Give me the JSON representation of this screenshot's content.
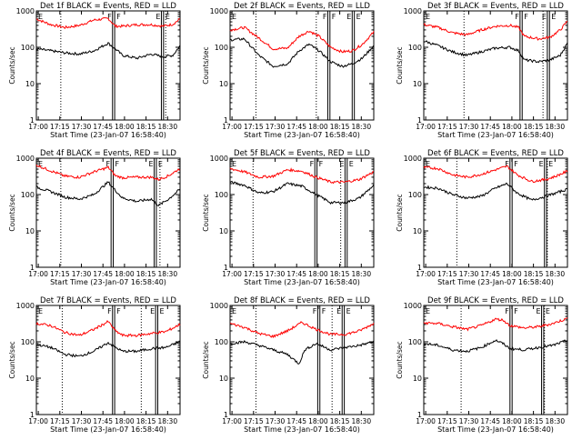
{
  "shared": {
    "xlabel": "Start Time (23-Jan-07 16:58:40)",
    "ylabel": "Counts/sec",
    "x_ticks": [
      "17:00",
      "17:15",
      "17:30",
      "17:45",
      "18:00",
      "18:15",
      "18:30"
    ],
    "y_ticks": [
      "1",
      "10",
      "100",
      "1000"
    ],
    "event_labels": [
      "E",
      "F",
      "F",
      "E"
    ],
    "colors": {
      "events": "#000000",
      "lld": "#ff0000",
      "markers": "#000000"
    }
  },
  "chart_data": [
    {
      "type": "line",
      "title": "Det 1f BLACK = Events, RED = LLD",
      "xlabel": "Start Time (23-Jan-07 16:58:40)",
      "ylabel": "Counts/sec",
      "x_unit": "minutes after 16:58:40",
      "xlim": [
        0,
        100
      ],
      "ylim": [
        1,
        1000
      ],
      "yscale": "log",
      "dotted_lines_x": [
        17,
        90
      ],
      "marker_pairs_x": [
        [
          53,
          54.5
        ],
        [
          87,
          88.5
        ]
      ],
      "series": [
        {
          "name": "LLD",
          "color": "#ff0000",
          "x": [
            0,
            10,
            20,
            30,
            40,
            50,
            55,
            60,
            70,
            80,
            88,
            95,
            100
          ],
          "y": [
            600,
            420,
            350,
            400,
            560,
            620,
            380,
            380,
            420,
            420,
            380,
            430,
            600
          ]
        },
        {
          "name": "Events",
          "color": "#000000",
          "x": [
            0,
            10,
            20,
            30,
            40,
            50,
            55,
            60,
            70,
            80,
            88,
            95,
            100
          ],
          "y": [
            90,
            80,
            70,
            65,
            80,
            130,
            90,
            60,
            50,
            65,
            55,
            60,
            110
          ]
        }
      ]
    },
    {
      "type": "line",
      "title": "Det 2f BLACK = Events, RED = LLD",
      "xlabel": "Start Time (23-Jan-07 16:58:40)",
      "ylabel": "Counts/sec",
      "x_unit": "minutes after 16:58:40",
      "xlim": [
        0,
        100
      ],
      "ylim": [
        1,
        1000
      ],
      "yscale": "log",
      "dotted_lines_x": [
        18,
        60
      ],
      "marker_pairs_x": [
        [
          68,
          69.5
        ],
        [
          85,
          86.5
        ]
      ],
      "series": [
        {
          "name": "LLD",
          "color": "#ff0000",
          "x": [
            0,
            10,
            20,
            30,
            40,
            48,
            55,
            62,
            70,
            78,
            85,
            92,
            100
          ],
          "y": [
            300,
            350,
            180,
            90,
            95,
            200,
            280,
            200,
            100,
            75,
            80,
            120,
            260
          ]
        },
        {
          "name": "Events",
          "color": "#000000",
          "x": [
            0,
            10,
            20,
            30,
            40,
            48,
            55,
            62,
            70,
            78,
            85,
            92,
            100
          ],
          "y": [
            160,
            170,
            60,
            30,
            35,
            80,
            120,
            80,
            40,
            30,
            35,
            50,
            110
          ]
        }
      ]
    },
    {
      "type": "line",
      "title": "Det 3f BLACK = Events, RED = LLD",
      "xlabel": "Start Time (23-Jan-07 16:58:40)",
      "ylabel": "Counts/sec",
      "x_unit": "minutes after 16:58:40",
      "xlim": [
        0,
        100
      ],
      "ylim": [
        1,
        1000
      ],
      "yscale": "log",
      "dotted_lines_x": [
        28,
        83
      ],
      "marker_pairs_x": [
        [
          67,
          68.5
        ],
        [
          86,
          87.5
        ]
      ],
      "series": [
        {
          "name": "LLD",
          "color": "#ff0000",
          "x": [
            0,
            10,
            20,
            30,
            40,
            50,
            60,
            66,
            70,
            80,
            88,
            95,
            100
          ],
          "y": [
            420,
            350,
            250,
            220,
            300,
            380,
            400,
            350,
            200,
            170,
            190,
            300,
            520
          ]
        },
        {
          "name": "Events",
          "color": "#000000",
          "x": [
            0,
            10,
            20,
            30,
            40,
            50,
            60,
            66,
            70,
            80,
            88,
            95,
            100
          ],
          "y": [
            150,
            110,
            75,
            60,
            75,
            95,
            100,
            80,
            45,
            40,
            45,
            60,
            130
          ]
        }
      ]
    },
    {
      "type": "line",
      "title": "Det 4f BLACK = Events, RED = LLD",
      "xlabel": "Start Time (23-Jan-07 16:58:40)",
      "ylabel": "Counts/sec",
      "x_unit": "minutes after 16:58:40",
      "xlim": [
        0,
        100
      ],
      "ylim": [
        1,
        1000
      ],
      "yscale": "log",
      "dotted_lines_x": [
        17,
        86
      ],
      "marker_pairs_x": [
        [
          52,
          53.5
        ],
        [
          82,
          83.5
        ]
      ],
      "series": [
        {
          "name": "LLD",
          "color": "#ff0000",
          "x": [
            0,
            10,
            20,
            30,
            40,
            50,
            55,
            60,
            70,
            80,
            85,
            92,
            100
          ],
          "y": [
            650,
            450,
            320,
            300,
            420,
            560,
            330,
            290,
            300,
            300,
            260,
            330,
            520
          ]
        },
        {
          "name": "Events",
          "color": "#000000",
          "x": [
            0,
            10,
            20,
            30,
            40,
            50,
            55,
            60,
            70,
            80,
            85,
            92,
            100
          ],
          "y": [
            160,
            120,
            85,
            75,
            100,
            220,
            130,
            80,
            65,
            75,
            50,
            75,
            140
          ]
        }
      ]
    },
    {
      "type": "line",
      "title": "Det 5f BLACK = Events, RED = LLD",
      "xlabel": "Start Time (23-Jan-07 16:58:40)",
      "ylabel": "Counts/sec",
      "x_unit": "minutes after 16:58:40",
      "xlim": [
        0,
        100
      ],
      "ylim": [
        1,
        1000
      ],
      "yscale": "log",
      "dotted_lines_x": [
        16,
        77
      ],
      "marker_pairs_x": [
        [
          59,
          60.5
        ],
        [
          80,
          81.5
        ]
      ],
      "series": [
        {
          "name": "LLD",
          "color": "#ff0000",
          "x": [
            0,
            10,
            20,
            30,
            40,
            50,
            60,
            70,
            80,
            90,
            100
          ],
          "y": [
            520,
            420,
            300,
            320,
            480,
            440,
            300,
            220,
            220,
            260,
            420
          ]
        },
        {
          "name": "Events",
          "color": "#000000",
          "x": [
            0,
            10,
            20,
            30,
            40,
            50,
            60,
            70,
            80,
            90,
            100
          ],
          "y": [
            220,
            180,
            110,
            120,
            200,
            170,
            100,
            60,
            60,
            80,
            180
          ]
        }
      ]
    },
    {
      "type": "line",
      "title": "Det 6f BLACK = Events, RED = LLD",
      "xlabel": "Start Time (23-Jan-07 16:58:40)",
      "ylabel": "Counts/sec",
      "x_unit": "minutes after 16:58:40",
      "xlim": [
        0,
        100
      ],
      "ylim": [
        1,
        1000
      ],
      "yscale": "log",
      "dotted_lines_x": [
        23,
        86
      ],
      "marker_pairs_x": [
        [
          60,
          61.5
        ],
        [
          84,
          85.5
        ]
      ],
      "series": [
        {
          "name": "LLD",
          "color": "#ff0000",
          "x": [
            0,
            10,
            20,
            30,
            40,
            50,
            58,
            65,
            75,
            85,
            92,
            100
          ],
          "y": [
            560,
            520,
            350,
            300,
            360,
            480,
            600,
            350,
            230,
            260,
            320,
            440
          ]
        },
        {
          "name": "Events",
          "color": "#000000",
          "x": [
            0,
            10,
            20,
            30,
            40,
            50,
            58,
            65,
            75,
            85,
            92,
            100
          ],
          "y": [
            160,
            150,
            100,
            80,
            90,
            150,
            200,
            110,
            70,
            90,
            110,
            140
          ]
        }
      ]
    },
    {
      "type": "line",
      "title": "Det 7f BLACK = Events, RED = LLD",
      "xlabel": "Start Time (23-Jan-07 16:58:40)",
      "ylabel": "Counts/sec",
      "x_unit": "minutes after 16:58:40",
      "xlim": [
        0,
        100
      ],
      "ylim": [
        1,
        1000
      ],
      "yscale": "log",
      "dotted_lines_x": [
        18,
        73
      ],
      "marker_pairs_x": [
        [
          53,
          54.5
        ],
        [
          83,
          84.5
        ]
      ],
      "series": [
        {
          "name": "LLD",
          "color": "#ff0000",
          "x": [
            0,
            10,
            20,
            30,
            40,
            50,
            55,
            60,
            70,
            80,
            90,
            100
          ],
          "y": [
            320,
            280,
            180,
            150,
            220,
            360,
            200,
            150,
            150,
            170,
            190,
            300
          ]
        },
        {
          "name": "Events",
          "color": "#000000",
          "x": [
            0,
            10,
            20,
            30,
            40,
            50,
            55,
            60,
            70,
            80,
            90,
            100
          ],
          "y": [
            85,
            70,
            45,
            40,
            55,
            95,
            70,
            55,
            55,
            65,
            70,
            100
          ]
        }
      ]
    },
    {
      "type": "line",
      "title": "Det 8f BLACK = Events, RED = LLD",
      "xlabel": "Start Time (23-Jan-07 16:58:40)",
      "ylabel": "Counts/sec",
      "x_unit": "minutes after 16:58:40",
      "xlim": [
        0,
        100
      ],
      "ylim": [
        1,
        1000
      ],
      "yscale": "log",
      "dotted_lines_x": [
        18,
        71
      ],
      "marker_pairs_x": [
        [
          61,
          62.5
        ],
        [
          78,
          79.5
        ]
      ],
      "series": [
        {
          "name": "LLD",
          "color": "#ff0000",
          "x": [
            0,
            10,
            20,
            30,
            40,
            50,
            60,
            70,
            80,
            90,
            100
          ],
          "y": [
            320,
            250,
            170,
            140,
            200,
            340,
            220,
            160,
            160,
            200,
            320
          ]
        },
        {
          "name": "Events",
          "color": "#000000",
          "x": [
            0,
            10,
            20,
            30,
            40,
            48,
            52,
            60,
            70,
            80,
            90,
            100
          ],
          "y": [
            90,
            100,
            80,
            60,
            45,
            25,
            60,
            90,
            60,
            70,
            80,
            100
          ]
        }
      ]
    },
    {
      "type": "line",
      "title": "Det 9f BLACK = Events, RED = LLD",
      "xlabel": "Start Time (23-Jan-07 16:58:40)",
      "ylabel": "Counts/sec",
      "x_unit": "minutes after 16:58:40",
      "xlim": [
        0,
        100
      ],
      "ylim": [
        1,
        1000
      ],
      "yscale": "log",
      "dotted_lines_x": [
        26,
        84
      ],
      "marker_pairs_x": [
        [
          60,
          61.5
        ],
        [
          82,
          83.5
        ]
      ],
      "series": [
        {
          "name": "LLD",
          "color": "#ff0000",
          "x": [
            0,
            10,
            20,
            30,
            40,
            50,
            55,
            60,
            70,
            80,
            90,
            100
          ],
          "y": [
            330,
            320,
            260,
            220,
            280,
            420,
            400,
            280,
            240,
            260,
            320,
            440
          ]
        },
        {
          "name": "Events",
          "color": "#000000",
          "x": [
            0,
            10,
            20,
            30,
            40,
            50,
            55,
            60,
            70,
            80,
            90,
            100
          ],
          "y": [
            90,
            80,
            60,
            55,
            70,
            110,
            90,
            65,
            60,
            70,
            80,
            110
          ]
        }
      ]
    }
  ]
}
